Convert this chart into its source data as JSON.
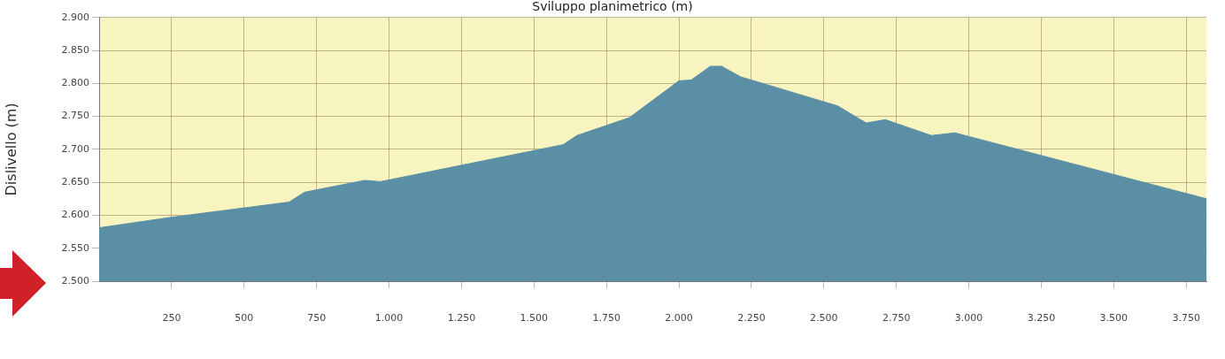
{
  "chart_data": {
    "type": "area",
    "xlabel": "Sviluppo planimetrico (m)",
    "ylabel": "Dislivello (m)",
    "x": [
      0,
      250,
      655,
      709,
      916,
      970,
      1600,
      1648,
      1829,
      2000,
      2042,
      2108,
      2147,
      2213,
      2547,
      2646,
      2712,
      2871,
      2952,
      3820
    ],
    "series": [
      {
        "color": "#5a8fa6",
        "values": [
          2581,
          2597,
          2620,
          2635,
          2653,
          2651,
          2707,
          2721,
          2748,
          2804,
          2805,
          2826,
          2826,
          2810,
          2766,
          2740,
          2745,
          2721,
          2725,
          2625
        ]
      }
    ],
    "xlim": [
      0,
      3820
    ],
    "xticks": [
      {
        "value": 250,
        "label": "250"
      },
      {
        "value": 500,
        "label": "500"
      },
      {
        "value": 750,
        "label": "750"
      },
      {
        "value": 1000,
        "label": "1.000"
      },
      {
        "value": 1250,
        "label": "1.250"
      },
      {
        "value": 1500,
        "label": "1.500"
      },
      {
        "value": 1750,
        "label": "1.750"
      },
      {
        "value": 2000,
        "label": "2.000"
      },
      {
        "value": 2250,
        "label": "2.250"
      },
      {
        "value": 2500,
        "label": "2.500"
      },
      {
        "value": 2750,
        "label": "2.750"
      },
      {
        "value": 3000,
        "label": "3.000"
      },
      {
        "value": 3250,
        "label": "3.250"
      },
      {
        "value": 3500,
        "label": "3.500"
      },
      {
        "value": 3750,
        "label": "3.750"
      }
    ],
    "ylim": [
      2500,
      2900
    ],
    "yticks": [
      {
        "value": 2500,
        "label": "2.500"
      },
      {
        "value": 2550,
        "label": "2.550"
      },
      {
        "value": 2600,
        "label": "2.600"
      },
      {
        "value": 2650,
        "label": "2.650"
      },
      {
        "value": 2700,
        "label": "2.700"
      },
      {
        "value": 2750,
        "label": "2.750"
      },
      {
        "value": 2800,
        "label": "2.800"
      },
      {
        "value": 2850,
        "label": "2.850"
      },
      {
        "value": 2900,
        "label": "2.900"
      }
    ],
    "grid": true,
    "marker": "none"
  }
}
